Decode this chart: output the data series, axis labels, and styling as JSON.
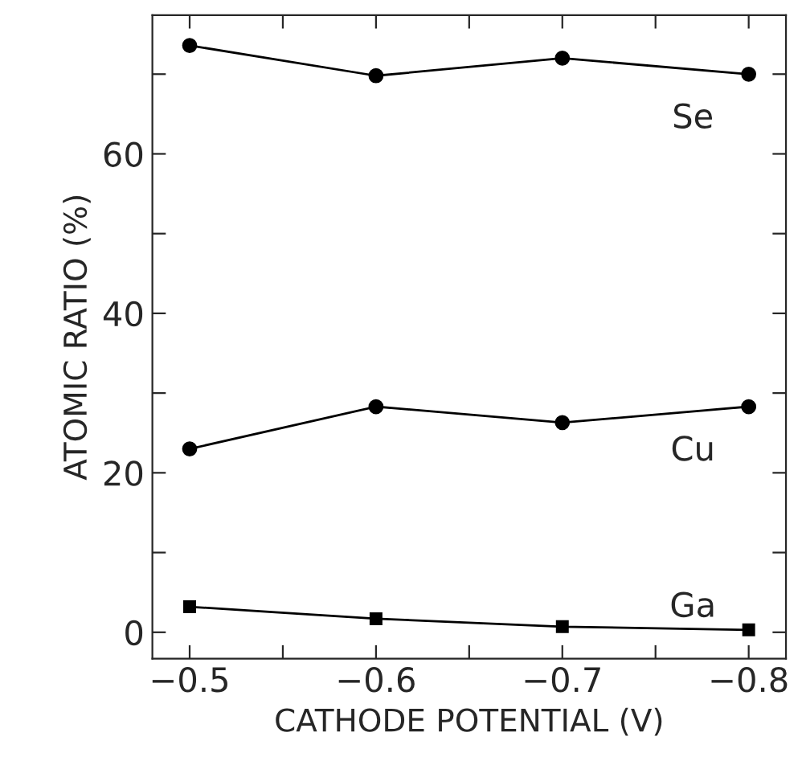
{
  "chart_data": {
    "type": "line",
    "xlabel": "CATHODE POTENTIAL (V)",
    "ylabel": "ATOMIC RATIO (%)",
    "x": [
      -0.5,
      -0.6,
      -0.7,
      -0.8
    ],
    "series": [
      {
        "name": "Se",
        "color": "#000000",
        "marker": "circle",
        "values": [
          73.6,
          69.8,
          72.0,
          70.0
        ]
      },
      {
        "name": "Cu",
        "color": "#000000",
        "marker": "circle",
        "values": [
          23.0,
          28.3,
          26.3,
          28.3
        ]
      },
      {
        "name": "Ga",
        "color": "#000000",
        "marker": "square",
        "values": [
          3.2,
          1.7,
          0.7,
          0.3
        ]
      }
    ],
    "xlim": [
      -0.48,
      -0.82
    ],
    "xticks": [
      -0.5,
      {
        "value": -0.55,
        "label": null
      },
      -0.6,
      {
        "value": -0.65,
        "label": null
      },
      -0.7,
      {
        "value": -0.75,
        "label": null
      },
      -0.8
    ],
    "ylim": [
      -3.3,
      77.4
    ],
    "yticks": [
      0,
      {
        "value": 10,
        "label": null
      },
      20,
      {
        "value": 30,
        "label": null
      },
      40,
      {
        "value": 50,
        "label": null
      },
      60,
      {
        "value": 70,
        "label": null
      }
    ],
    "grid": false,
    "legend": false,
    "line_style": "solid"
  }
}
